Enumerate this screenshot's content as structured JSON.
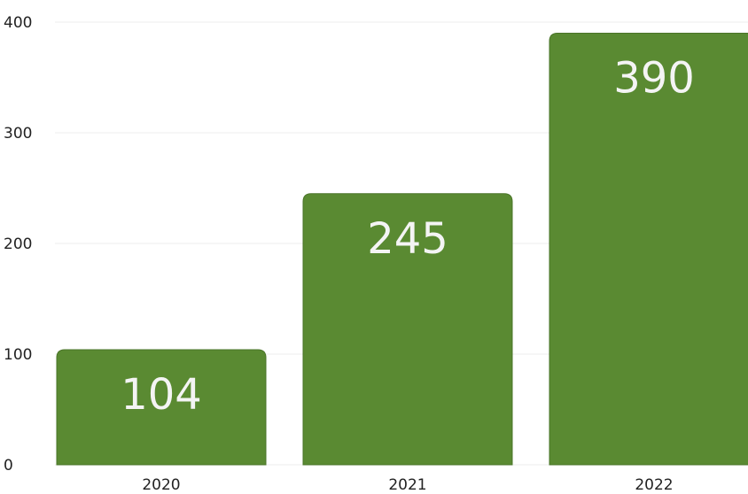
{
  "chart_data": {
    "type": "bar",
    "title": "",
    "xlabel": "",
    "ylabel": "",
    "categories": [
      "2020",
      "2021",
      "2022"
    ],
    "values": [
      104,
      245,
      390
    ],
    "data_labels": [
      "104",
      "245",
      "390"
    ],
    "ylim": [
      0,
      400
    ],
    "yticks": [
      0,
      100,
      200,
      300,
      400
    ],
    "ytick_labels": [
      "0",
      "100",
      "200",
      "300",
      "400"
    ],
    "grid": true,
    "legend": "none",
    "colors": {
      "bar": "#5a8a32",
      "bar_edge": "#4a7428",
      "value_text": "#f4f4f4",
      "grid": "#ececec",
      "axis_text": "#222222"
    }
  }
}
